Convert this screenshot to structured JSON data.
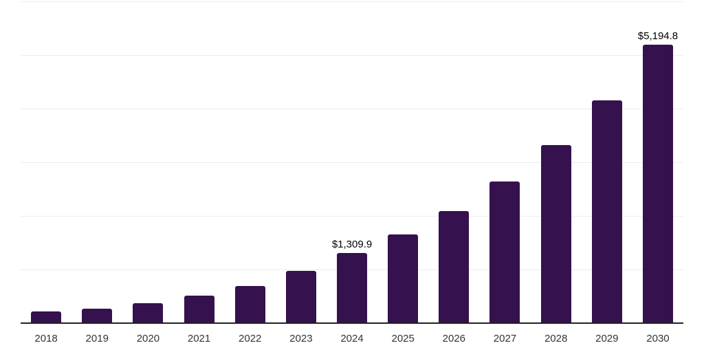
{
  "chart_data": {
    "type": "bar",
    "title": "",
    "xlabel": "",
    "ylabel": "",
    "categories": [
      "2018",
      "2019",
      "2020",
      "2021",
      "2022",
      "2023",
      "2024",
      "2025",
      "2026",
      "2027",
      "2028",
      "2029",
      "2030"
    ],
    "values": [
      220,
      270,
      370,
      510,
      690,
      975,
      1309.9,
      1650,
      2085,
      2640,
      3320,
      4160,
      5194.8
    ],
    "data_labels": [
      {
        "category": "2024",
        "label": "$1,309.9"
      },
      {
        "category": "2030",
        "label": "$5,194.8"
      }
    ],
    "ylim": [
      0,
      6000
    ],
    "gridline_step": 1000,
    "grid": "horizontal",
    "legend": "none",
    "y_axis_tick_labels_visible": false,
    "colors": {
      "bar": "#35114e",
      "gridline": "#ededed",
      "axis_line": "#222222",
      "tick_label": "#333333",
      "data_label": "#000000",
      "background": "#ffffff"
    }
  }
}
